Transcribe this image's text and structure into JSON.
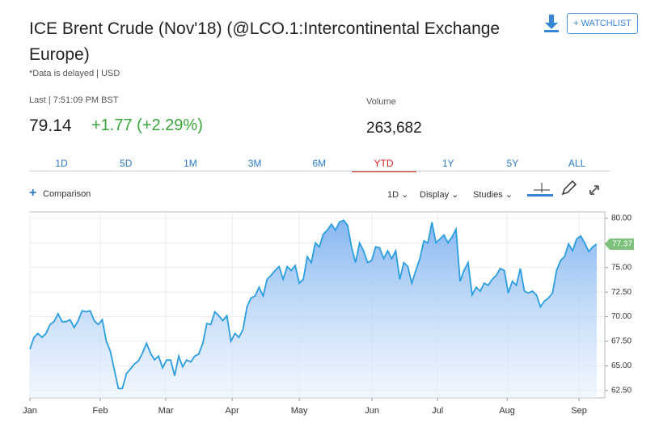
{
  "header": {
    "title": "ICE Brent Crude (Nov'18) (@LCO.1:Intercontinental Exchange Europe)",
    "note": "*Data is delayed | USD",
    "watchlist": "+ WATCHLIST"
  },
  "quote": {
    "last_label": "Last | 7:51:09 PM BST",
    "last": "79.14",
    "change": "+1.77 (+2.29%)",
    "volume_label": "Volume",
    "volume": "263,682"
  },
  "tabs": [
    "1D",
    "5D",
    "1M",
    "3M",
    "6M",
    "YTD",
    "1Y",
    "5Y",
    "ALL"
  ],
  "active_tab": "YTD",
  "toolbar": {
    "comparison": "Comparison",
    "interval": "1D",
    "display": "Display",
    "studies": "Studies"
  },
  "chart_data": {
    "type": "area",
    "color": "#2a9ee0",
    "values": [
      66.7,
      67.9,
      68.3,
      67.9,
      68.3,
      69.2,
      69.5,
      70.3,
      69.5,
      69.5,
      69.7,
      68.9,
      69.6,
      70.6,
      70.5,
      70.6,
      69.6,
      69.2,
      69.7,
      67.5,
      66.5,
      64.6,
      62.7,
      62.7,
      64.2,
      64.7,
      65.2,
      65.5,
      66.3,
      67.3,
      66.3,
      65.6,
      66.0,
      64.8,
      65.6,
      65.6,
      64.0,
      66.0,
      64.9,
      65.6,
      65.4,
      66.0,
      66.2,
      67.3,
      69.3,
      69.2,
      70.5,
      70.1,
      69.6,
      70.1,
      67.5,
      68.3,
      67.9,
      68.7,
      71.0,
      71.9,
      72.1,
      73.0,
      72.1,
      73.8,
      74.2,
      74.7,
      75.1,
      73.8,
      75.1,
      74.7,
      75.2,
      73.4,
      73.8,
      76.1,
      75.5,
      77.5,
      77.1,
      78.4,
      78.8,
      79.4,
      78.8,
      79.6,
      79.8,
      79.3,
      77.1,
      75.5,
      77.5,
      76.7,
      75.5,
      75.7,
      77.1,
      77.0,
      75.9,
      76.7,
      75.9,
      76.7,
      73.8,
      75.5,
      75.1,
      73.4,
      74.7,
      75.9,
      77.7,
      77.5,
      79.6,
      77.5,
      77.9,
      78.3,
      77.5,
      78.1,
      78.9,
      73.6,
      74.7,
      75.5,
      72.2,
      73.0,
      72.6,
      73.4,
      73.2,
      73.8,
      74.2,
      74.9,
      74.7,
      72.4,
      73.6,
      73.2,
      74.9,
      72.6,
      72.4,
      72.6,
      72.2,
      71.0,
      71.6,
      71.9,
      72.4,
      74.7,
      75.7,
      76.1,
      77.4,
      76.7,
      77.9,
      78.2,
      77.5,
      76.6,
      77.1,
      77.37
    ],
    "xlim": [
      0,
      141
    ],
    "xticks": [
      {
        "value": 0,
        "label": "Jan"
      },
      {
        "value": 17.5,
        "label": "Feb"
      },
      {
        "value": 33.8,
        "label": "Mar"
      },
      {
        "value": 50.3,
        "label": "Apr"
      },
      {
        "value": 67,
        "label": "May"
      },
      {
        "value": 85.1,
        "label": "Jun"
      },
      {
        "value": 101.4,
        "label": "Jul"
      },
      {
        "value": 118.7,
        "label": "Aug"
      },
      {
        "value": 136.6,
        "label": "Sep"
      }
    ],
    "ylim": [
      61.75,
      80.65
    ],
    "yticks": [
      {
        "value": 62.5,
        "label": "62.50"
      },
      {
        "value": 65,
        "label": "65.00"
      },
      {
        "value": 67.5,
        "label": "67.50"
      },
      {
        "value": 70,
        "label": "70.00"
      },
      {
        "value": 72.5,
        "label": "72.50"
      },
      {
        "value": 75,
        "label": "75.00"
      },
      {
        "value": 77.5,
        "label": "77.50"
      },
      {
        "value": 80,
        "label": "80.00"
      }
    ],
    "grid": true
  }
}
